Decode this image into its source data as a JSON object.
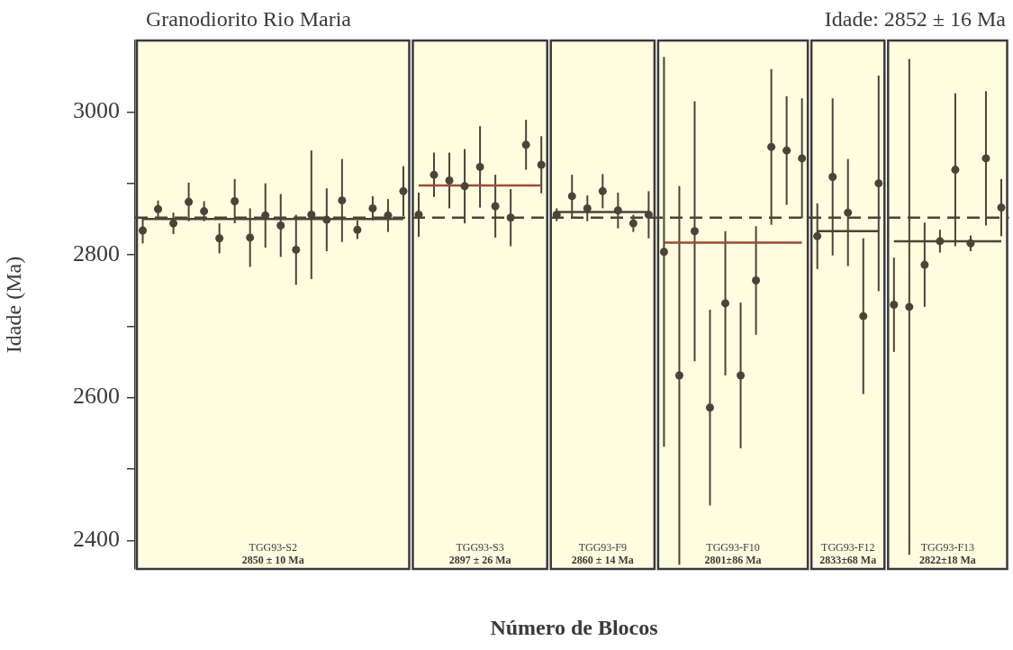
{
  "chart_data": {
    "type": "scatter",
    "title": "Granodiorito Rio Maria",
    "subtitle": "Idade: 2852 ± 16 Ma",
    "xlabel": "Número de Blocos",
    "ylabel": "Idade (Ma)",
    "tick_labels": "y",
    "categories": [
      null,
      null,
      null,
      null,
      null,
      null,
      null,
      null,
      null,
      null,
      null,
      null,
      null,
      null,
      null,
      null,
      null,
      null,
      null,
      null,
      null,
      null,
      null,
      null,
      null,
      null,
      null,
      null,
      null,
      null,
      null,
      null,
      null,
      null,
      null,
      null,
      null,
      null,
      null,
      null,
      null,
      null,
      null,
      null,
      null,
      null,
      null,
      null,
      null,
      null,
      null,
      null,
      null,
      null,
      null,
      null,
      null
    ],
    "ylim": [
      2360,
      3100
    ],
    "yticks": [
      {
        "value": 2400,
        "label": "2400"
      },
      {
        "value": 2500,
        "label": null
      },
      {
        "value": 2600,
        "label": "2600"
      },
      {
        "value": 2700,
        "label": null
      },
      {
        "value": 2800,
        "label": "2800"
      },
      {
        "value": 2900,
        "label": null
      },
      {
        "value": 3000,
        "label": "3000"
      }
    ],
    "ref_lines": [
      {
        "axis": "y",
        "value": 2852,
        "line_style": "dashed",
        "color": "#4a4438"
      }
    ],
    "annotations": [
      "TGG93-S2",
      "2850 ± 10 Ma",
      "TGG93-S3",
      "2897 ± 26 Ma",
      "TGG93-F9",
      "2860 ± 14 Ma",
      "TGG93-F10",
      "2801±86 Ma",
      "TGG93-F12",
      "2833±68 Ma",
      "TGG93-F13",
      "2822±18 Ma"
    ],
    "series": [
      {
        "marker": "circle",
        "color": "#4a4438",
        "values": [
          2834,
          2864,
          2844,
          2874,
          2861,
          2823,
          2875,
          2824,
          2855,
          2841,
          2807,
          2856,
          2849,
          2876,
          2835,
          2865,
          2855,
          2889,
          null,
          null,
          null,
          null,
          null,
          null,
          null,
          null,
          null,
          null,
          null,
          null,
          null,
          null,
          null,
          null,
          null,
          null,
          null,
          null,
          null,
          null,
          null,
          null,
          null,
          null,
          null,
          null,
          null,
          null,
          null,
          null,
          null,
          null,
          null,
          null,
          null,
          null,
          null
        ],
        "errors": [
          18,
          12,
          15,
          27,
          14,
          21,
          31,
          41,
          45,
          44,
          49,
          90,
          44,
          58,
          13,
          17,
          23,
          35,
          null,
          null,
          null,
          null,
          null,
          null,
          null,
          null,
          null,
          null,
          null,
          null,
          null,
          null,
          null,
          null,
          null,
          null,
          null,
          null,
          null,
          null,
          null,
          null,
          null,
          null,
          null,
          null,
          null,
          null,
          null,
          null,
          null,
          null,
          null,
          null,
          null,
          null,
          null
        ]
      },
      {
        "type": "line",
        "color": "#4a4438",
        "values": [
          2850,
          2850,
          2850,
          2850,
          2850,
          2850,
          2850,
          2850,
          2850,
          2850,
          2850,
          2850,
          2850,
          2850,
          2850,
          2850,
          2850,
          2850,
          null,
          null,
          null,
          null,
          null,
          null,
          null,
          null,
          null,
          null,
          null,
          null,
          null,
          null,
          null,
          null,
          null,
          null,
          null,
          null,
          null,
          null,
          null,
          null,
          null,
          null,
          null,
          null,
          null,
          null,
          null,
          null,
          null,
          null,
          null,
          null,
          null,
          null,
          null
        ]
      },
      {
        "marker": "circle",
        "color": "#4a4438",
        "values": [
          null,
          null,
          null,
          null,
          null,
          null,
          null,
          null,
          null,
          null,
          null,
          null,
          null,
          null,
          null,
          null,
          null,
          null,
          2856,
          2912,
          2904,
          2896,
          2923,
          2868,
          2852,
          2954,
          2926,
          null,
          null,
          null,
          null,
          null,
          null,
          null,
          null,
          null,
          null,
          null,
          null,
          null,
          null,
          null,
          null,
          null,
          null,
          null,
          null,
          null,
          null,
          null,
          null,
          null,
          null,
          null,
          null,
          null,
          null
        ],
        "errors": [
          null,
          null,
          null,
          null,
          null,
          null,
          null,
          null,
          null,
          null,
          null,
          null,
          null,
          null,
          null,
          null,
          null,
          null,
          31,
          31,
          39,
          52,
          57,
          44,
          40,
          35,
          40,
          null,
          null,
          null,
          null,
          null,
          null,
          null,
          null,
          null,
          null,
          null,
          null,
          null,
          null,
          null,
          null,
          null,
          null,
          null,
          null,
          null,
          null,
          null,
          null,
          null,
          null,
          null,
          null,
          null,
          null
        ]
      },
      {
        "type": "line",
        "color": "#a04a38",
        "values": [
          null,
          null,
          null,
          null,
          null,
          null,
          null,
          null,
          null,
          null,
          null,
          null,
          null,
          null,
          null,
          null,
          null,
          null,
          2897,
          2897,
          2897,
          2897,
          2897,
          2897,
          2897,
          2897,
          2897,
          null,
          null,
          null,
          null,
          null,
          null,
          null,
          null,
          null,
          null,
          null,
          null,
          null,
          null,
          null,
          null,
          null,
          null,
          null,
          null,
          null,
          null,
          null,
          null,
          null,
          null,
          null,
          null,
          null,
          null
        ]
      },
      {
        "marker": "circle",
        "color": "#4a4438",
        "values": [
          null,
          null,
          null,
          null,
          null,
          null,
          null,
          null,
          null,
          null,
          null,
          null,
          null,
          null,
          null,
          null,
          null,
          null,
          null,
          null,
          null,
          null,
          null,
          null,
          null,
          null,
          null,
          2856,
          2882,
          2865,
          2889,
          2862,
          2844,
          2856,
          null,
          null,
          null,
          null,
          null,
          null,
          null,
          null,
          null,
          null,
          null,
          null,
          null,
          null,
          null,
          null,
          null,
          null,
          null,
          null,
          null,
          null,
          null
        ],
        "errors": [
          null,
          null,
          null,
          null,
          null,
          null,
          null,
          null,
          null,
          null,
          null,
          null,
          null,
          null,
          null,
          null,
          null,
          null,
          null,
          null,
          null,
          null,
          null,
          null,
          null,
          null,
          null,
          9,
          30,
          18,
          24,
          25,
          12,
          33,
          null,
          null,
          null,
          null,
          null,
          null,
          null,
          null,
          null,
          null,
          null,
          null,
          null,
          null,
          null,
          null,
          null,
          null,
          null,
          null,
          null,
          null,
          null
        ]
      },
      {
        "type": "line",
        "color": "#4a4438",
        "values": [
          null,
          null,
          null,
          null,
          null,
          null,
          null,
          null,
          null,
          null,
          null,
          null,
          null,
          null,
          null,
          null,
          null,
          null,
          null,
          null,
          null,
          null,
          null,
          null,
          null,
          null,
          null,
          2860,
          2860,
          2860,
          2860,
          2860,
          2860,
          2860,
          null,
          null,
          null,
          null,
          null,
          null,
          null,
          null,
          null,
          null,
          null,
          null,
          null,
          null,
          null,
          null,
          null,
          null,
          null,
          null,
          null,
          null,
          null
        ]
      },
      {
        "marker": "circle",
        "color": "#4a4438",
        "values": [
          null,
          null,
          null,
          null,
          null,
          null,
          null,
          null,
          null,
          null,
          null,
          null,
          null,
          null,
          null,
          null,
          null,
          null,
          null,
          null,
          null,
          null,
          null,
          null,
          null,
          null,
          null,
          null,
          null,
          null,
          null,
          null,
          null,
          null,
          2804,
          2631,
          2833,
          2586,
          2732,
          2631,
          2764,
          2951,
          2946,
          2935,
          null,
          null,
          null,
          null,
          null,
          null,
          null,
          null,
          null,
          null,
          null,
          null,
          null
        ],
        "errors": [
          null,
          null,
          null,
          null,
          null,
          null,
          null,
          null,
          null,
          null,
          null,
          null,
          null,
          null,
          null,
          null,
          null,
          null,
          null,
          null,
          null,
          null,
          null,
          null,
          null,
          null,
          null,
          null,
          null,
          null,
          null,
          null,
          null,
          null,
          273,
          265,
          182,
          137,
          101,
          102,
          76,
          109,
          76,
          84,
          null,
          null,
          null,
          null,
          null,
          null,
          null,
          null,
          null,
          null,
          null,
          null,
          null
        ]
      },
      {
        "type": "line",
        "color": "#9a4a36",
        "values": [
          null,
          null,
          null,
          null,
          null,
          null,
          null,
          null,
          null,
          null,
          null,
          null,
          null,
          null,
          null,
          null,
          null,
          null,
          null,
          null,
          null,
          null,
          null,
          null,
          null,
          null,
          null,
          null,
          null,
          null,
          null,
          null,
          null,
          null,
          2817,
          2817,
          2817,
          2817,
          2817,
          2817,
          2817,
          2817,
          2817,
          2817,
          null,
          null,
          null,
          null,
          null,
          null,
          null,
          null,
          null,
          null,
          null,
          null,
          null
        ]
      },
      {
        "marker": "circle",
        "color": "#4a4438",
        "values": [
          null,
          null,
          null,
          null,
          null,
          null,
          null,
          null,
          null,
          null,
          null,
          null,
          null,
          null,
          null,
          null,
          null,
          null,
          null,
          null,
          null,
          null,
          null,
          null,
          null,
          null,
          null,
          null,
          null,
          null,
          null,
          null,
          null,
          null,
          null,
          null,
          null,
          null,
          null,
          null,
          null,
          null,
          null,
          null,
          2826,
          2909,
          2859,
          2714,
          2900,
          null,
          null,
          null,
          null,
          null,
          null,
          null,
          null
        ],
        "errors": [
          null,
          null,
          null,
          null,
          null,
          null,
          null,
          null,
          null,
          null,
          null,
          null,
          null,
          null,
          null,
          null,
          null,
          null,
          null,
          null,
          null,
          null,
          null,
          null,
          null,
          null,
          null,
          null,
          null,
          null,
          null,
          null,
          null,
          null,
          null,
          null,
          null,
          null,
          null,
          null,
          null,
          null,
          null,
          null,
          46,
          110,
          75,
          109,
          151,
          null,
          null,
          null,
          null,
          null,
          null,
          null,
          null
        ]
      },
      {
        "type": "line",
        "color": "#4a4438",
        "values": [
          null,
          null,
          null,
          null,
          null,
          null,
          null,
          null,
          null,
          null,
          null,
          null,
          null,
          null,
          null,
          null,
          null,
          null,
          null,
          null,
          null,
          null,
          null,
          null,
          null,
          null,
          null,
          null,
          null,
          null,
          null,
          null,
          null,
          null,
          null,
          null,
          null,
          null,
          null,
          null,
          null,
          null,
          null,
          null,
          2833,
          2833,
          2833,
          2833,
          2833,
          null,
          null,
          null,
          null,
          null,
          null,
          null,
          null
        ]
      },
      {
        "marker": "circle",
        "color": "#4a4438",
        "values": [
          null,
          null,
          null,
          null,
          null,
          null,
          null,
          null,
          null,
          null,
          null,
          null,
          null,
          null,
          null,
          null,
          null,
          null,
          null,
          null,
          null,
          null,
          null,
          null,
          null,
          null,
          null,
          null,
          null,
          null,
          null,
          null,
          null,
          null,
          null,
          null,
          null,
          null,
          null,
          null,
          null,
          null,
          null,
          null,
          null,
          null,
          null,
          null,
          null,
          2730,
          2727,
          2786,
          2819,
          2919,
          2816,
          2935,
          2866
        ],
        "errors": [
          null,
          null,
          null,
          null,
          null,
          null,
          null,
          null,
          null,
          null,
          null,
          null,
          null,
          null,
          null,
          null,
          null,
          null,
          null,
          null,
          null,
          null,
          null,
          null,
          null,
          null,
          null,
          null,
          null,
          null,
          null,
          null,
          null,
          null,
          null,
          null,
          null,
          null,
          null,
          null,
          null,
          null,
          null,
          null,
          null,
          null,
          null,
          null,
          null,
          66,
          347,
          59,
          16,
          107,
          11,
          94,
          40
        ]
      },
      {
        "type": "line",
        "color": "#4a4438",
        "values": [
          null,
          null,
          null,
          null,
          null,
          null,
          null,
          null,
          null,
          null,
          null,
          null,
          null,
          null,
          null,
          null,
          null,
          null,
          null,
          null,
          null,
          null,
          null,
          null,
          null,
          null,
          null,
          null,
          null,
          null,
          null,
          null,
          null,
          null,
          null,
          null,
          null,
          null,
          null,
          null,
          null,
          null,
          null,
          null,
          null,
          null,
          null,
          null,
          null,
          2819,
          2819,
          2819,
          2819,
          2819,
          2819,
          2819,
          2819
        ]
      }
    ]
  }
}
